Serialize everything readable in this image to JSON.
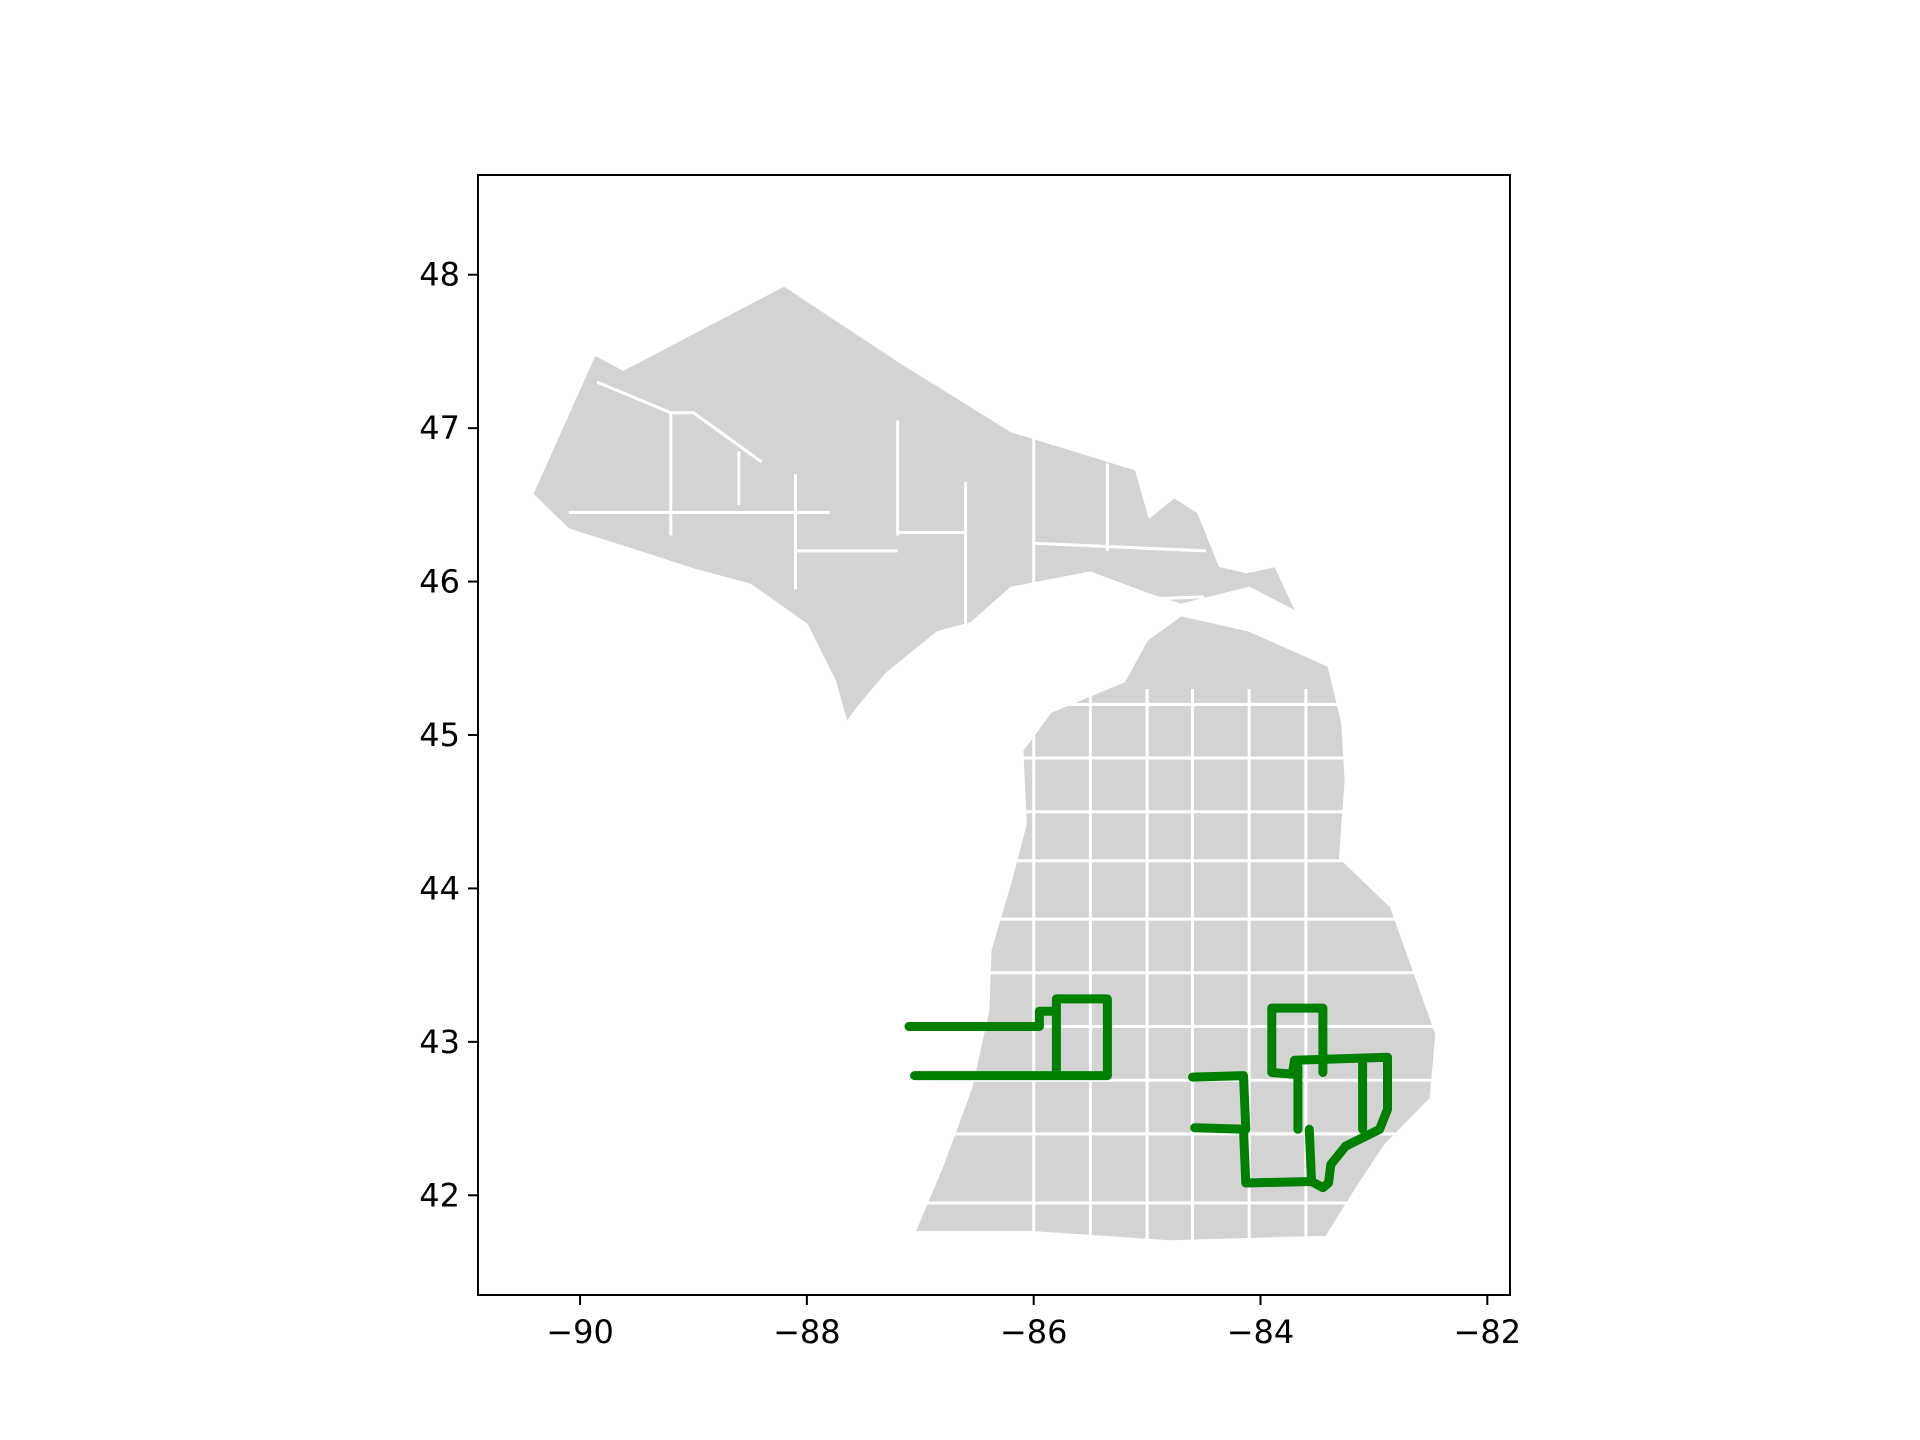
{
  "chart_data": {
    "type": "map",
    "region": "Michigan counties",
    "xlim": [
      -90.9,
      -81.8
    ],
    "ylim": [
      41.35,
      48.65
    ],
    "x_ticks": [
      -90,
      -88,
      -86,
      -84,
      -82
    ],
    "y_ticks": [
      42,
      43,
      44,
      45,
      46,
      47,
      48
    ],
    "x_tick_labels": [
      "−90",
      "−88",
      "−86",
      "−84",
      "−82"
    ],
    "y_tick_labels": [
      "42",
      "43",
      "44",
      "45",
      "46",
      "47",
      "48"
    ],
    "colors": {
      "land": "#d3d3d3",
      "county_border": "#ffffff",
      "highlight": "#008000",
      "axes": "#000000"
    },
    "upper_peninsula_outline": [
      [
        -90.42,
        46.57
      ],
      [
        -89.87,
        47.48
      ],
      [
        -89.62,
        47.38
      ],
      [
        -88.2,
        47.93
      ],
      [
        -87.2,
        47.44
      ],
      [
        -86.2,
        46.98
      ],
      [
        -85.1,
        46.73
      ],
      [
        -84.98,
        46.42
      ],
      [
        -84.76,
        46.55
      ],
      [
        -84.55,
        46.45
      ],
      [
        -84.36,
        46.1
      ],
      [
        -84.12,
        46.06
      ],
      [
        -83.87,
        46.1
      ],
      [
        -83.68,
        45.8
      ],
      [
        -84.1,
        45.96
      ],
      [
        -84.7,
        45.85
      ],
      [
        -85.0,
        45.92
      ],
      [
        -85.5,
        46.06
      ],
      [
        -86.2,
        45.96
      ],
      [
        -86.55,
        45.73
      ],
      [
        -86.85,
        45.67
      ],
      [
        -87.3,
        45.4
      ],
      [
        -87.55,
        45.18
      ],
      [
        -87.65,
        45.08
      ],
      [
        -87.75,
        45.35
      ],
      [
        -88.0,
        45.72
      ],
      [
        -88.5,
        45.98
      ],
      [
        -89.0,
        46.08
      ],
      [
        -89.5,
        46.2
      ],
      [
        -90.1,
        46.34
      ]
    ],
    "lower_peninsula_outline": [
      [
        -87.05,
        41.76
      ],
      [
        -86.8,
        42.2
      ],
      [
        -86.55,
        42.7
      ],
      [
        -86.4,
        43.2
      ],
      [
        -86.38,
        43.6
      ],
      [
        -86.2,
        44.05
      ],
      [
        -86.07,
        44.42
      ],
      [
        -86.1,
        44.9
      ],
      [
        -85.85,
        45.15
      ],
      [
        -85.2,
        45.35
      ],
      [
        -85.0,
        45.62
      ],
      [
        -84.7,
        45.78
      ],
      [
        -84.1,
        45.68
      ],
      [
        -83.4,
        45.45
      ],
      [
        -83.28,
        45.08
      ],
      [
        -83.25,
        44.7
      ],
      [
        -83.3,
        44.2
      ],
      [
        -82.85,
        43.88
      ],
      [
        -82.45,
        43.05
      ],
      [
        -82.5,
        42.63
      ],
      [
        -82.9,
        42.33
      ],
      [
        -83.15,
        42.05
      ],
      [
        -83.42,
        41.73
      ],
      [
        -84.8,
        41.7
      ],
      [
        -86.0,
        41.76
      ],
      [
        -86.6,
        41.76
      ]
    ],
    "county_lines": [
      [
        [
          -89.85,
          47.3
        ],
        [
          -89.2,
          47.1
        ],
        [
          -89.0,
          47.1
        ],
        [
          -88.4,
          46.78
        ]
      ],
      [
        [
          -89.2,
          47.1
        ],
        [
          -89.2,
          46.3
        ]
      ],
      [
        [
          -90.1,
          46.45
        ],
        [
          -89.2,
          46.45
        ],
        [
          -87.8,
          46.45
        ]
      ],
      [
        [
          -88.6,
          46.85
        ],
        [
          -88.6,
          46.5
        ]
      ],
      [
        [
          -88.1,
          46.7
        ],
        [
          -88.1,
          45.95
        ]
      ],
      [
        [
          -87.2,
          47.05
        ],
        [
          -87.2,
          46.3
        ]
      ],
      [
        [
          -88.1,
          46.2
        ],
        [
          -87.2,
          46.2
        ]
      ],
      [
        [
          -87.2,
          46.32
        ],
        [
          -86.6,
          46.32
        ]
      ],
      [
        [
          -86.6,
          46.65
        ],
        [
          -86.6,
          45.6
        ]
      ],
      [
        [
          -86.0,
          46.98
        ],
        [
          -86.0,
          45.8
        ]
      ],
      [
        [
          -85.35,
          46.77
        ],
        [
          -85.35,
          46.2
        ]
      ],
      [
        [
          -86.0,
          46.25
        ],
        [
          -84.48,
          46.2
        ]
      ],
      [
        [
          -86.0,
          45.86
        ],
        [
          -84.5,
          45.9
        ]
      ]
    ],
    "lower_grid_x": [
      -86.0,
      -85.5,
      -85.0,
      -84.6,
      -84.1,
      -83.6
    ],
    "lower_grid_y": [
      41.95,
      42.4,
      42.75,
      43.1,
      43.45,
      43.8,
      44.18,
      44.5,
      44.85,
      45.2
    ],
    "highlighted_counties": [
      {
        "outline": [
          [
            -87.1,
            43.1
          ],
          [
            -85.95,
            43.1
          ],
          [
            -85.95,
            43.2
          ],
          [
            -85.8,
            43.2
          ],
          [
            -85.8,
            43.28
          ],
          [
            -85.35,
            43.28
          ],
          [
            -85.35,
            42.78
          ],
          [
            -87.05,
            42.78
          ]
        ]
      },
      {
        "outline": [
          [
            -85.8,
            43.22
          ],
          [
            -85.8,
            42.8
          ]
        ]
      },
      {
        "outline": [
          [
            -84.6,
            42.77
          ],
          [
            -84.15,
            42.78
          ],
          [
            -84.13,
            42.43
          ],
          [
            -84.58,
            42.44
          ]
        ]
      },
      {
        "outline": [
          [
            -84.15,
            42.43
          ],
          [
            -84.13,
            42.08
          ],
          [
            -83.55,
            42.09
          ],
          [
            -83.45,
            42.05
          ],
          [
            -83.4,
            42.08
          ],
          [
            -83.38,
            42.2
          ],
          [
            -83.25,
            42.32
          ],
          [
            -82.95,
            42.43
          ],
          [
            -82.88,
            42.56
          ],
          [
            -82.88,
            42.9
          ],
          [
            -83.7,
            42.88
          ],
          [
            -83.72,
            42.79
          ],
          [
            -83.9,
            42.8
          ],
          [
            -83.9,
            43.22
          ],
          [
            -83.45,
            43.22
          ],
          [
            -83.45,
            42.8
          ]
        ]
      },
      {
        "outline": [
          [
            -83.67,
            42.43
          ],
          [
            -83.67,
            42.84
          ]
        ]
      },
      {
        "outline": [
          [
            -83.1,
            42.43
          ],
          [
            -83.1,
            42.88
          ]
        ]
      },
      {
        "outline": [
          [
            -83.57,
            42.43
          ],
          [
            -83.55,
            42.09
          ]
        ]
      }
    ]
  }
}
